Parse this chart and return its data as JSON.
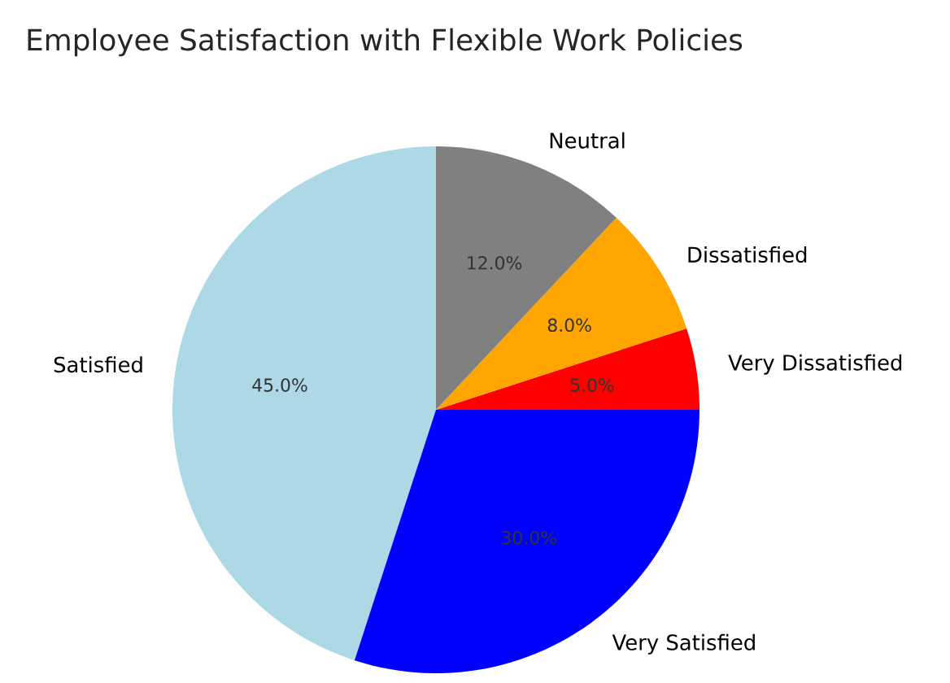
{
  "chart_data": {
    "type": "pie",
    "title": "Employee Satisfaction with Flexible Work Policies",
    "categories": [
      "Satisfied",
      "Very Satisfied",
      "Very Dissatisfied",
      "Dissatisfied",
      "Neutral"
    ],
    "values": [
      45,
      30,
      5,
      8,
      12
    ],
    "colors": [
      "#add8e6",
      "#0000ff",
      "#ff0000",
      "#ffa500",
      "#808080"
    ],
    "value_labels": [
      "45.0%",
      "30.0%",
      "5.0%",
      "8.0%",
      "12.0%"
    ]
  }
}
